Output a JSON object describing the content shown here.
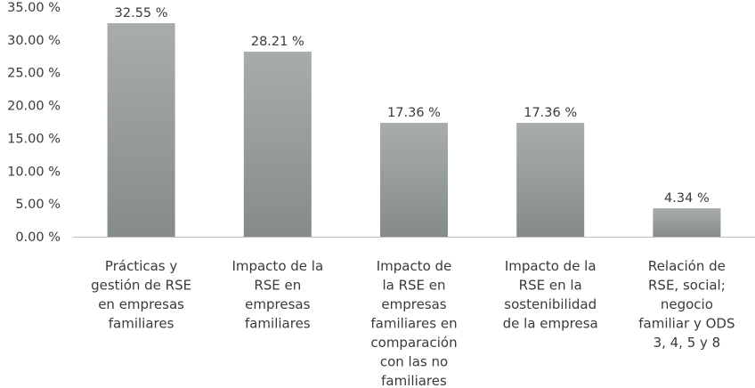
{
  "chart_data": {
    "type": "bar",
    "title": "",
    "xlabel": "",
    "ylabel": "",
    "ylim": [
      0,
      35
    ],
    "y_ticks": [
      "0.00 %",
      "5.00 %",
      "10.00 %",
      "15.00 %",
      "20.00 %",
      "25.00 %",
      "30.00 %",
      "35.00 %"
    ],
    "y_tick_values": [
      0,
      5,
      10,
      15,
      20,
      25,
      30,
      35
    ],
    "grid": false,
    "categories": [
      [
        "Prácticas y",
        "gestión de RSE",
        "en empresas",
        "familiares"
      ],
      [
        "Impacto de la",
        "RSE en",
        "empresas",
        "familiares"
      ],
      [
        "Impacto de",
        "la RSE en",
        "empresas",
        "familiares en",
        "comparación",
        "con las no",
        "familiares"
      ],
      [
        "Impacto de la",
        "RSE en la",
        "sostenibilidad",
        "de la empresa"
      ],
      [
        "Relación de",
        "RSE, social;",
        "negocio",
        "familiar y ODS",
        "3, 4, 5 y 8"
      ]
    ],
    "values": [
      32.55,
      28.21,
      17.36,
      17.36,
      4.34
    ],
    "value_labels": [
      "32.55 %",
      "28.21 %",
      "17.36 %",
      "17.36 %",
      "4.34 %"
    ],
    "bar_color_top": "#a8acac",
    "bar_color_bottom": "#858b8b"
  }
}
